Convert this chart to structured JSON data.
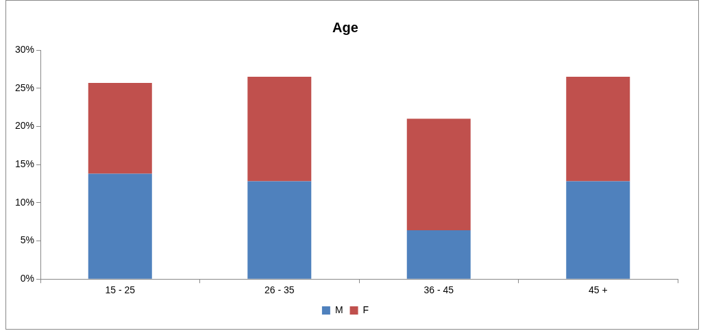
{
  "chart_data": {
    "type": "bar",
    "title": "Age",
    "categories": [
      "15 - 25",
      "26 - 35",
      "36 - 45",
      "45 +"
    ],
    "stacked": true,
    "series": [
      {
        "name": "M",
        "color": "#4f81bd",
        "values": [
          13.8,
          12.8,
          6.4,
          12.8
        ]
      },
      {
        "name": "F",
        "color": "#c0504d",
        "values": [
          11.9,
          13.7,
          14.6,
          13.7
        ]
      }
    ],
    "ylim": [
      0,
      30
    ],
    "yticks": [
      {
        "value": 0,
        "label": "0%"
      },
      {
        "value": 5,
        "label": "5%"
      },
      {
        "value": 10,
        "label": "10%"
      },
      {
        "value": 15,
        "label": "15%"
      },
      {
        "value": 20,
        "label": "20%"
      },
      {
        "value": 25,
        "label": "25%"
      },
      {
        "value": 30,
        "label": "30%"
      }
    ],
    "grid": false,
    "legend": "bottom"
  }
}
